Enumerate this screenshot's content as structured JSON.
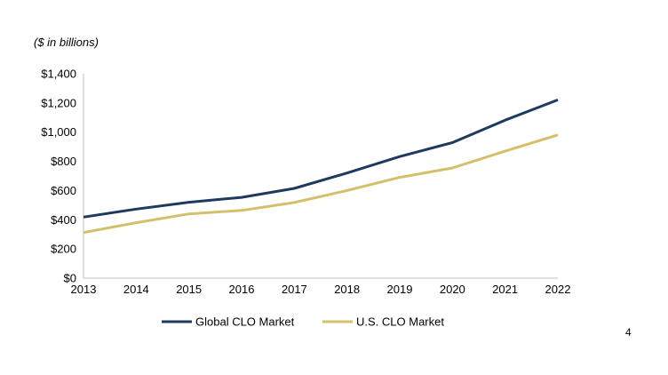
{
  "page_number": "4",
  "chart_data": {
    "type": "line",
    "subtitle": "($ in billions)",
    "x": [
      "2013",
      "2014",
      "2015",
      "2016",
      "2017",
      "2018",
      "2019",
      "2020",
      "2021",
      "2022"
    ],
    "series": [
      {
        "name": "Global CLO Market",
        "color": "#1f3a5f",
        "values": [
          418,
          473,
          520,
          553,
          615,
          720,
          833,
          928,
          1082,
          1221
        ]
      },
      {
        "name": "U.S. CLO Market",
        "color": "#d4c06a",
        "values": [
          312,
          380,
          440,
          464,
          518,
          600,
          690,
          755,
          870,
          981
        ]
      }
    ],
    "ylim": [
      0,
      1400
    ],
    "y_ticks": [
      0,
      200,
      400,
      600,
      800,
      1000,
      1200,
      1400
    ],
    "y_tick_labels": [
      "$0",
      "$200",
      "$400",
      "$600",
      "$800",
      "$1,000",
      "$1,200",
      "$1,400"
    ],
    "legend_position": "bottom",
    "grid": false
  }
}
